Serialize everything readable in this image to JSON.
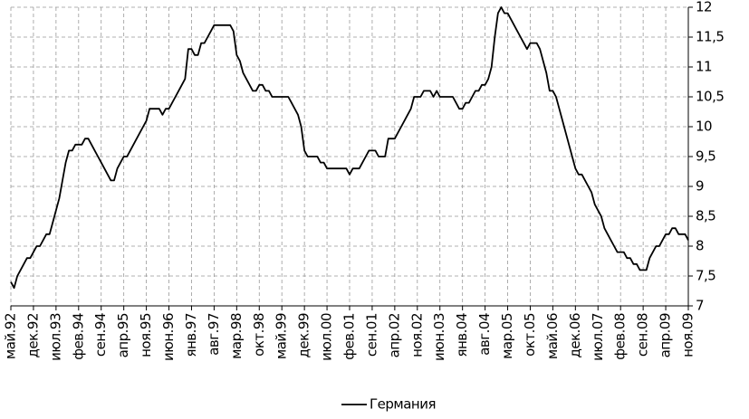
{
  "chart_data": {
    "type": "line",
    "categories": [
      "май.92",
      null,
      null,
      null,
      null,
      null,
      null,
      "дек.92",
      null,
      null,
      null,
      null,
      null,
      null,
      "июл.93",
      null,
      null,
      null,
      null,
      null,
      null,
      "фев.94",
      null,
      null,
      null,
      null,
      null,
      null,
      "сен.94",
      null,
      null,
      null,
      null,
      null,
      null,
      "апр.95",
      null,
      null,
      null,
      null,
      null,
      null,
      "ноя.95",
      null,
      null,
      null,
      null,
      null,
      null,
      "июн.96",
      null,
      null,
      null,
      null,
      null,
      null,
      "янв.97",
      null,
      null,
      null,
      null,
      null,
      null,
      "авг.97",
      null,
      null,
      null,
      null,
      null,
      null,
      "мар.98",
      null,
      null,
      null,
      null,
      null,
      null,
      "окт.98",
      null,
      null,
      null,
      null,
      null,
      null,
      "май.99",
      null,
      null,
      null,
      null,
      null,
      null,
      "дек.99",
      null,
      null,
      null,
      null,
      null,
      null,
      "июл.00",
      null,
      null,
      null,
      null,
      null,
      null,
      "фев.01",
      null,
      null,
      null,
      null,
      null,
      null,
      "сен.01",
      null,
      null,
      null,
      null,
      null,
      null,
      "апр.02",
      null,
      null,
      null,
      null,
      null,
      null,
      "ноя.02",
      null,
      null,
      null,
      null,
      null,
      null,
      "июн.03",
      null,
      null,
      null,
      null,
      null,
      null,
      "янв.04",
      null,
      null,
      null,
      null,
      null,
      null,
      "авг.04",
      null,
      null,
      null,
      null,
      null,
      null,
      "мар.05",
      null,
      null,
      null,
      null,
      null,
      null,
      "окт.05",
      null,
      null,
      null,
      null,
      null,
      null,
      "май.06",
      null,
      null,
      null,
      null,
      null,
      null,
      "дек.06",
      null,
      null,
      null,
      null,
      null,
      null,
      "июл.07",
      null,
      null,
      null,
      null,
      null,
      null,
      "фев.08",
      null,
      null,
      null,
      null,
      null,
      null,
      "сен.08",
      null,
      null,
      null,
      null,
      null,
      null,
      "апр.09",
      null,
      null,
      null,
      null,
      null,
      null,
      "ноя.09"
    ],
    "series": [
      {
        "name": "Германия",
        "color": "#000000",
        "values": [
          7.4,
          7.3,
          7.5,
          7.6,
          7.7,
          7.8,
          7.8,
          7.9,
          8.0,
          8.0,
          8.1,
          8.2,
          8.2,
          8.4,
          8.6,
          8.8,
          9.1,
          9.4,
          9.6,
          9.6,
          9.7,
          9.7,
          9.7,
          9.8,
          9.8,
          9.7,
          9.6,
          9.5,
          9.4,
          9.3,
          9.2,
          9.1,
          9.1,
          9.3,
          9.4,
          9.5,
          9.5,
          9.6,
          9.7,
          9.8,
          9.9,
          10.0,
          10.1,
          10.3,
          10.3,
          10.3,
          10.3,
          10.2,
          10.3,
          10.3,
          10.4,
          10.5,
          10.6,
          10.7,
          10.8,
          11.3,
          11.3,
          11.2,
          11.2,
          11.4,
          11.4,
          11.5,
          11.6,
          11.7,
          11.7,
          11.7,
          11.7,
          11.7,
          11.7,
          11.6,
          11.2,
          11.1,
          10.9,
          10.8,
          10.7,
          10.6,
          10.6,
          10.7,
          10.7,
          10.6,
          10.6,
          10.5,
          10.5,
          10.5,
          10.5,
          10.5,
          10.5,
          10.4,
          10.3,
          10.2,
          10.0,
          9.6,
          9.5,
          9.5,
          9.5,
          9.5,
          9.4,
          9.4,
          9.3,
          9.3,
          9.3,
          9.3,
          9.3,
          9.3,
          9.3,
          9.2,
          9.3,
          9.3,
          9.3,
          9.4,
          9.5,
          9.6,
          9.6,
          9.6,
          9.5,
          9.5,
          9.5,
          9.8,
          9.8,
          9.8,
          9.9,
          10.0,
          10.1,
          10.2,
          10.3,
          10.5,
          10.5,
          10.5,
          10.6,
          10.6,
          10.6,
          10.5,
          10.6,
          10.5,
          10.5,
          10.5,
          10.5,
          10.5,
          10.4,
          10.3,
          10.3,
          10.4,
          10.4,
          10.5,
          10.6,
          10.6,
          10.7,
          10.7,
          10.8,
          11.0,
          11.5,
          11.9,
          12.0,
          11.9,
          11.9,
          11.8,
          11.7,
          11.6,
          11.5,
          11.4,
          11.3,
          11.4,
          11.4,
          11.4,
          11.3,
          11.1,
          10.9,
          10.6,
          10.6,
          10.5,
          10.3,
          10.1,
          9.9,
          9.7,
          9.5,
          9.3,
          9.2,
          9.2,
          9.1,
          9.0,
          8.9,
          8.7,
          8.6,
          8.5,
          8.3,
          8.2,
          8.1,
          8.0,
          7.9,
          7.9,
          7.9,
          7.8,
          7.8,
          7.7,
          7.7,
          7.6,
          7.6,
          7.6,
          7.8,
          7.9,
          8.0,
          8.0,
          8.1,
          8.2,
          8.2,
          8.3,
          8.3,
          8.2,
          8.2,
          8.2,
          8.1
        ]
      }
    ],
    "ylim": [
      7,
      12
    ],
    "yticks": [
      7,
      {
        "value": 7.5,
        "label": "7,5"
      },
      8,
      {
        "value": 8.5,
        "label": "8,5"
      },
      9,
      {
        "value": 9.5,
        "label": "9,5"
      },
      10,
      {
        "value": 10.5,
        "label": "10,5"
      },
      11,
      {
        "value": 11.5,
        "label": "11,5"
      },
      12
    ],
    "grid": true,
    "legend": "bottom"
  }
}
